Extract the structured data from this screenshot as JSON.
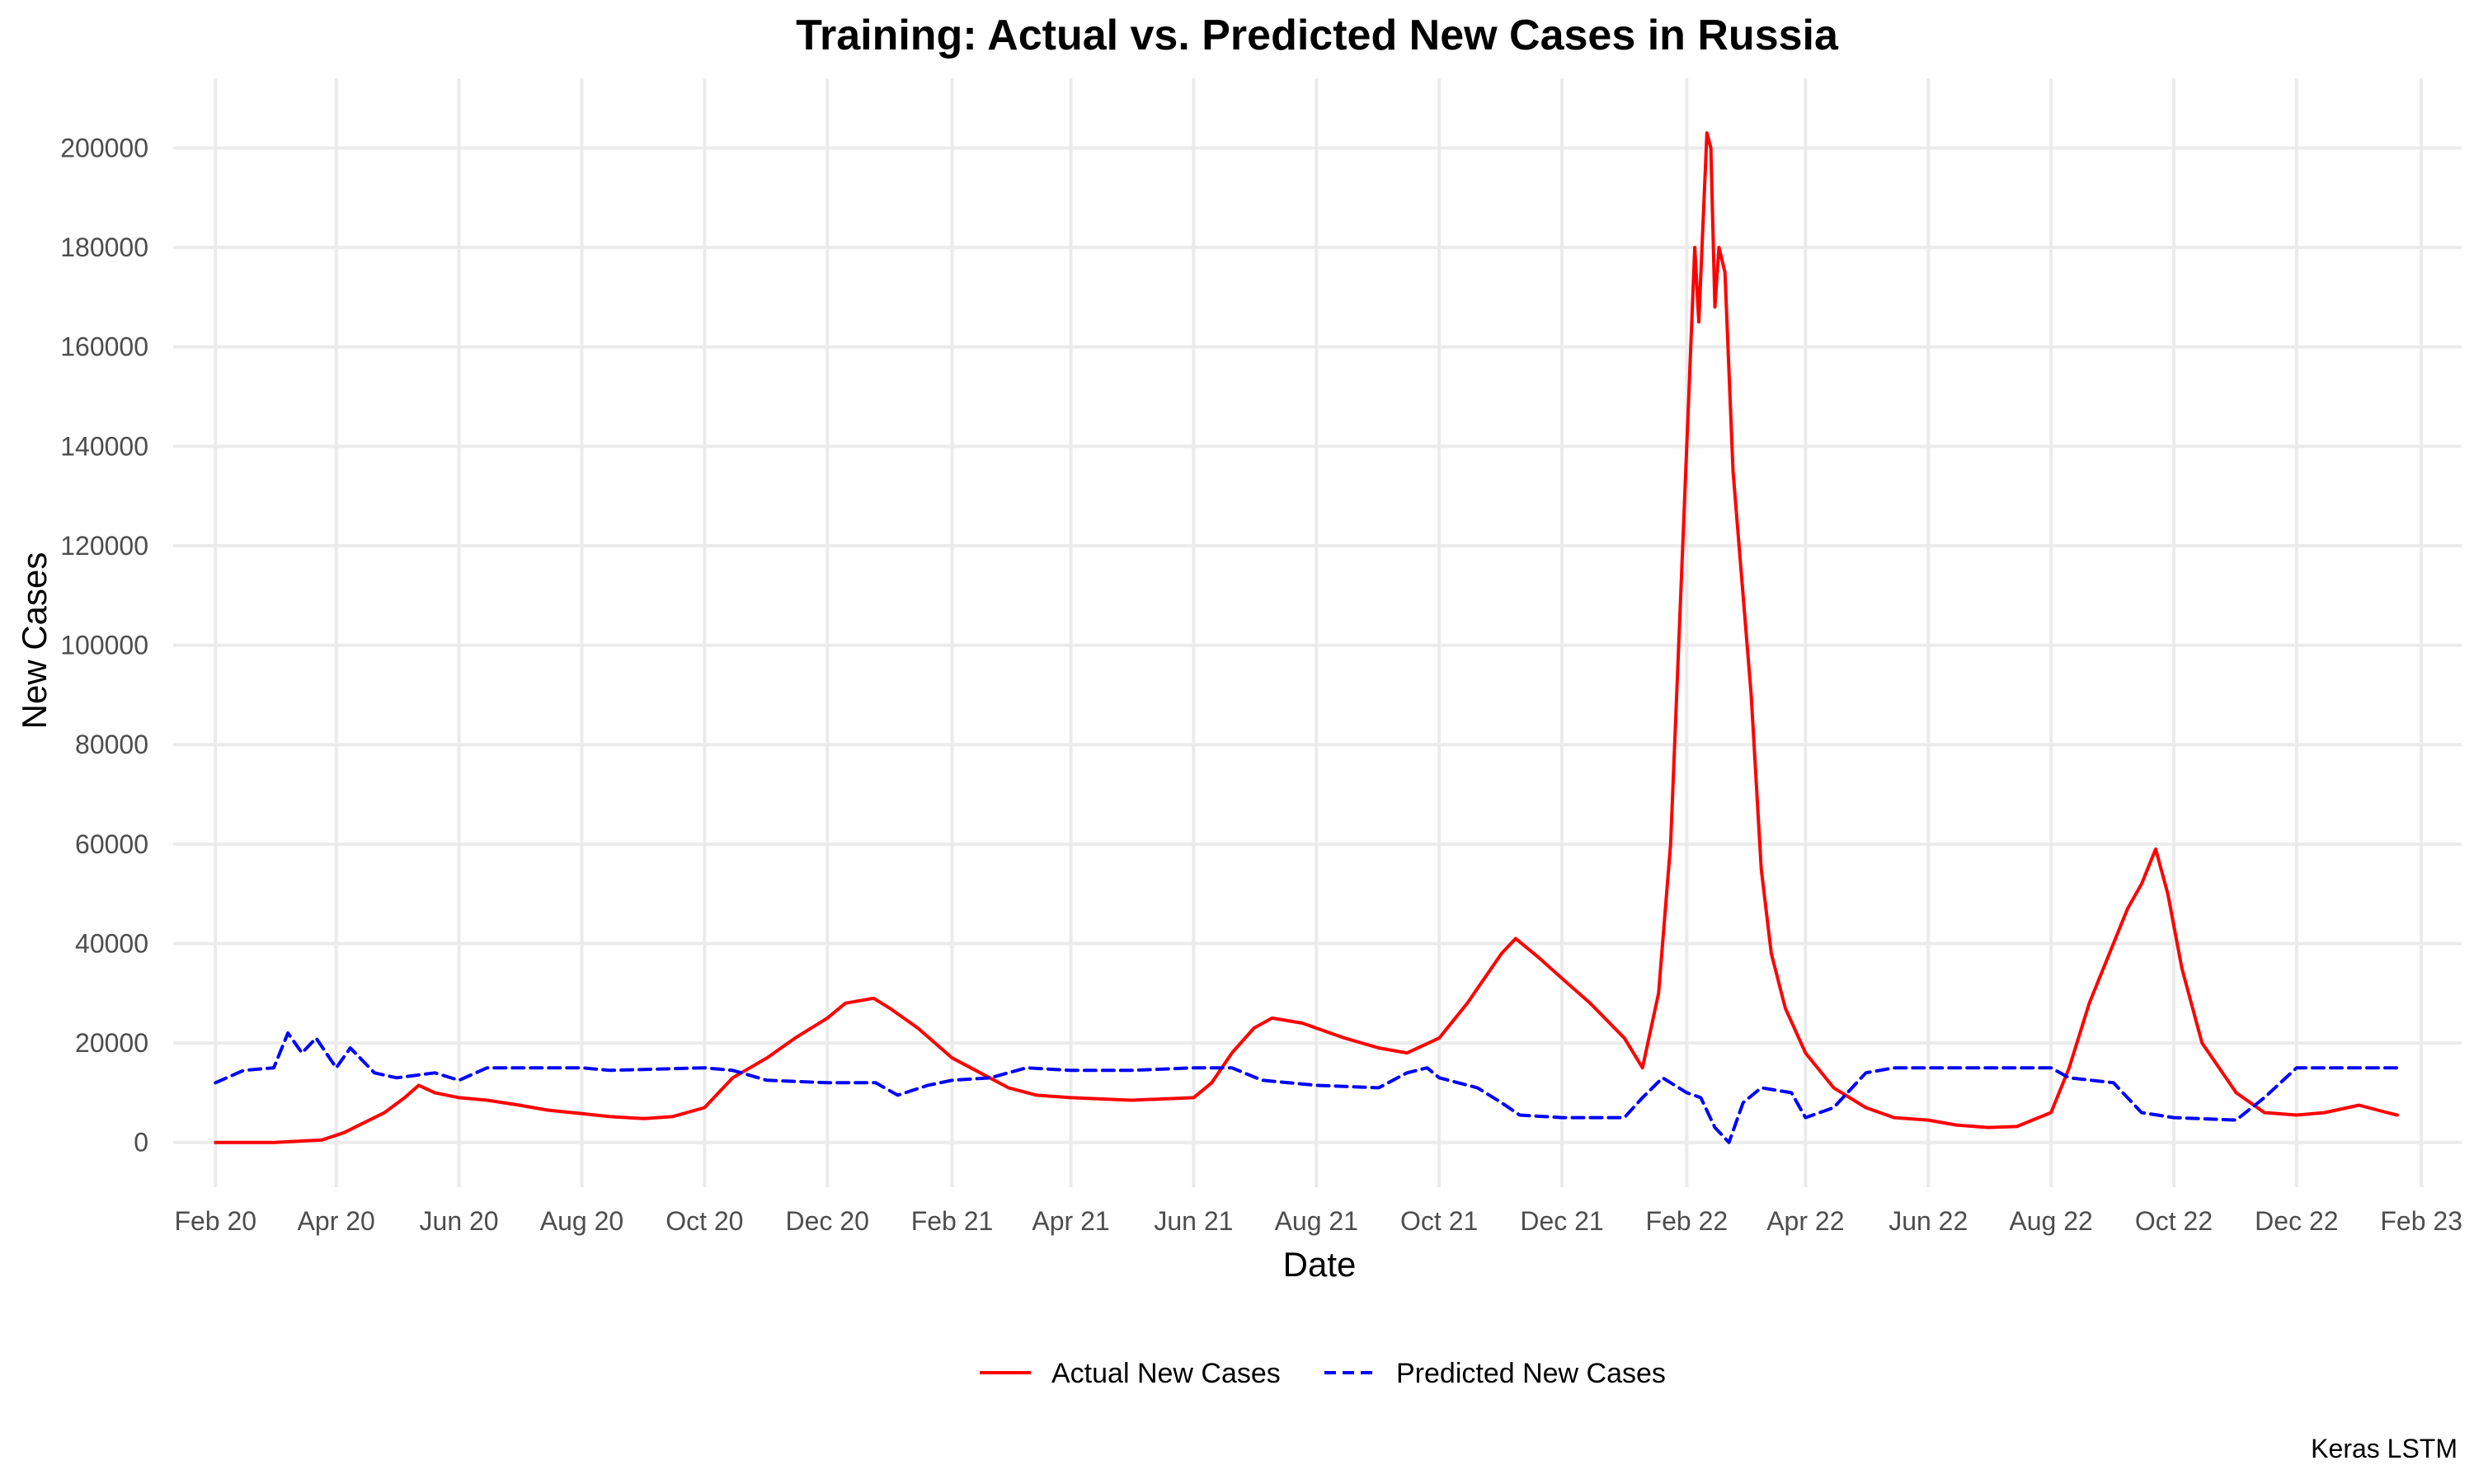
{
  "chart_data": {
    "type": "line",
    "title": "Training: Actual vs. Predicted New Cases in Russia",
    "xlabel": "Date",
    "ylabel": "New Cases",
    "caption": "Keras LSTM",
    "x_ticks": [
      "Feb 20",
      "Apr 20",
      "Jun 20",
      "Aug 20",
      "Oct 20",
      "Dec 20",
      "Feb 21",
      "Apr 21",
      "Jun 21",
      "Aug 21",
      "Oct 21",
      "Dec 21",
      "Feb 22",
      "Apr 22",
      "Jun 22",
      "Aug 22",
      "Oct 22",
      "Dec 22",
      "Feb 23"
    ],
    "x_tick_dates": [
      "2020-02-01",
      "2020-04-01",
      "2020-06-01",
      "2020-08-01",
      "2020-10-01",
      "2020-12-01",
      "2021-02-01",
      "2021-04-01",
      "2021-06-01",
      "2021-08-01",
      "2021-10-01",
      "2021-12-01",
      "2022-02-01",
      "2022-04-01",
      "2022-06-01",
      "2022-08-01",
      "2022-10-01",
      "2022-12-01",
      "2023-02-01"
    ],
    "y_ticks": [
      "0",
      "20000",
      "40000",
      "60000",
      "80000",
      "100000",
      "120000",
      "140000",
      "160000",
      "180000",
      "200000"
    ],
    "xlim": [
      "2020-01-11",
      "2023-02-21"
    ],
    "ylim": [
      -9000,
      214000
    ],
    "grid": true,
    "legend_position": "bottom",
    "series": [
      {
        "name": "Actual New Cases",
        "color": "#ff0000",
        "style": "solid",
        "points": [
          [
            "2020-02-01",
            0
          ],
          [
            "2020-03-01",
            0
          ],
          [
            "2020-03-25",
            500
          ],
          [
            "2020-04-05",
            2000
          ],
          [
            "2020-04-15",
            4000
          ],
          [
            "2020-04-25",
            6000
          ],
          [
            "2020-05-05",
            9000
          ],
          [
            "2020-05-12",
            11500
          ],
          [
            "2020-05-20",
            10000
          ],
          [
            "2020-06-01",
            9000
          ],
          [
            "2020-06-15",
            8500
          ],
          [
            "2020-07-01",
            7500
          ],
          [
            "2020-07-15",
            6500
          ],
          [
            "2020-08-01",
            5800
          ],
          [
            "2020-08-15",
            5200
          ],
          [
            "2020-09-01",
            4800
          ],
          [
            "2020-09-15",
            5200
          ],
          [
            "2020-10-01",
            7000
          ],
          [
            "2020-10-15",
            13000
          ],
          [
            "2020-11-01",
            17000
          ],
          [
            "2020-11-15",
            21000
          ],
          [
            "2020-12-01",
            25000
          ],
          [
            "2020-12-10",
            28000
          ],
          [
            "2020-12-24",
            29000
          ],
          [
            "2021-01-01",
            27000
          ],
          [
            "2021-01-15",
            23000
          ],
          [
            "2021-02-01",
            17000
          ],
          [
            "2021-02-15",
            14000
          ],
          [
            "2021-03-01",
            11000
          ],
          [
            "2021-03-15",
            9500
          ],
          [
            "2021-04-01",
            9000
          ],
          [
            "2021-05-01",
            8500
          ],
          [
            "2021-06-01",
            9000
          ],
          [
            "2021-06-10",
            12000
          ],
          [
            "2021-06-20",
            18000
          ],
          [
            "2021-07-01",
            23000
          ],
          [
            "2021-07-10",
            25000
          ],
          [
            "2021-07-25",
            24000
          ],
          [
            "2021-08-15",
            21000
          ],
          [
            "2021-09-01",
            19000
          ],
          [
            "2021-09-15",
            18000
          ],
          [
            "2021-10-01",
            21000
          ],
          [
            "2021-10-15",
            28000
          ],
          [
            "2021-11-01",
            38000
          ],
          [
            "2021-11-08",
            41000
          ],
          [
            "2021-11-20",
            37000
          ],
          [
            "2021-12-01",
            33000
          ],
          [
            "2021-12-15",
            28000
          ],
          [
            "2022-01-01",
            21000
          ],
          [
            "2022-01-10",
            15000
          ],
          [
            "2022-01-18",
            30000
          ],
          [
            "2022-01-24",
            60000
          ],
          [
            "2022-01-30",
            120000
          ],
          [
            "2022-02-05",
            180000
          ],
          [
            "2022-02-07",
            165000
          ],
          [
            "2022-02-11",
            203000
          ],
          [
            "2022-02-13",
            200000
          ],
          [
            "2022-02-15",
            168000
          ],
          [
            "2022-02-17",
            180000
          ],
          [
            "2022-02-20",
            175000
          ],
          [
            "2022-02-24",
            135000
          ],
          [
            "2022-03-01",
            110000
          ],
          [
            "2022-03-05",
            90000
          ],
          [
            "2022-03-10",
            55000
          ],
          [
            "2022-03-15",
            38000
          ],
          [
            "2022-03-22",
            27000
          ],
          [
            "2022-04-01",
            18000
          ],
          [
            "2022-04-15",
            11000
          ],
          [
            "2022-05-01",
            7000
          ],
          [
            "2022-05-15",
            5000
          ],
          [
            "2022-06-01",
            4500
          ],
          [
            "2022-06-15",
            3500
          ],
          [
            "2022-07-01",
            3000
          ],
          [
            "2022-07-15",
            3200
          ],
          [
            "2022-08-01",
            6000
          ],
          [
            "2022-08-10",
            15000
          ],
          [
            "2022-08-20",
            28000
          ],
          [
            "2022-09-01",
            40000
          ],
          [
            "2022-09-08",
            47000
          ],
          [
            "2022-09-15",
            52000
          ],
          [
            "2022-09-22",
            59000
          ],
          [
            "2022-09-28",
            50000
          ],
          [
            "2022-10-05",
            35000
          ],
          [
            "2022-10-15",
            20000
          ],
          [
            "2022-11-01",
            10000
          ],
          [
            "2022-11-15",
            6000
          ],
          [
            "2022-12-01",
            5500
          ],
          [
            "2022-12-15",
            6000
          ],
          [
            "2023-01-01",
            7500
          ],
          [
            "2023-01-15",
            6000
          ],
          [
            "2023-01-20",
            5500
          ]
        ]
      },
      {
        "name": "Predicted New Cases",
        "color": "#0000ff",
        "style": "dashed",
        "points": [
          [
            "2020-02-01",
            12000
          ],
          [
            "2020-02-15",
            14500
          ],
          [
            "2020-03-01",
            15000
          ],
          [
            "2020-03-08",
            22000
          ],
          [
            "2020-03-15",
            18000
          ],
          [
            "2020-03-22",
            21000
          ],
          [
            "2020-04-01",
            15000
          ],
          [
            "2020-04-08",
            19000
          ],
          [
            "2020-04-20",
            14000
          ],
          [
            "2020-05-01",
            13000
          ],
          [
            "2020-05-20",
            14000
          ],
          [
            "2020-06-01",
            12500
          ],
          [
            "2020-06-15",
            15000
          ],
          [
            "2020-08-01",
            15000
          ],
          [
            "2020-08-15",
            14500
          ],
          [
            "2020-10-01",
            15000
          ],
          [
            "2020-10-15",
            14500
          ],
          [
            "2020-11-01",
            12500
          ],
          [
            "2020-12-01",
            12000
          ],
          [
            "2020-12-25",
            12000
          ],
          [
            "2021-01-05",
            9500
          ],
          [
            "2021-01-20",
            11500
          ],
          [
            "2021-02-01",
            12500
          ],
          [
            "2021-02-20",
            13000
          ],
          [
            "2021-03-10",
            15000
          ],
          [
            "2021-04-01",
            14500
          ],
          [
            "2021-05-01",
            14500
          ],
          [
            "2021-06-01",
            15000
          ],
          [
            "2021-06-20",
            15000
          ],
          [
            "2021-07-05",
            12500
          ],
          [
            "2021-08-01",
            11500
          ],
          [
            "2021-09-01",
            11000
          ],
          [
            "2021-09-15",
            14000
          ],
          [
            "2021-09-25",
            15000
          ],
          [
            "2021-10-01",
            13000
          ],
          [
            "2021-10-20",
            11000
          ],
          [
            "2021-11-01",
            8000
          ],
          [
            "2021-11-10",
            5500
          ],
          [
            "2021-12-01",
            5000
          ],
          [
            "2022-01-01",
            5000
          ],
          [
            "2022-01-10",
            9000
          ],
          [
            "2022-01-20",
            13000
          ],
          [
            "2022-02-01",
            10000
          ],
          [
            "2022-02-08",
            9000
          ],
          [
            "2022-02-15",
            3000
          ],
          [
            "2022-02-22",
            0
          ],
          [
            "2022-03-01",
            8000
          ],
          [
            "2022-03-10",
            11000
          ],
          [
            "2022-03-25",
            10000
          ],
          [
            "2022-04-01",
            5000
          ],
          [
            "2022-04-15",
            7000
          ],
          [
            "2022-05-01",
            14000
          ],
          [
            "2022-05-15",
            15000
          ],
          [
            "2022-08-01",
            15000
          ],
          [
            "2022-08-10",
            13000
          ],
          [
            "2022-09-01",
            12000
          ],
          [
            "2022-09-15",
            6000
          ],
          [
            "2022-10-01",
            5000
          ],
          [
            "2022-11-01",
            4500
          ],
          [
            "2022-11-15",
            9000
          ],
          [
            "2022-12-01",
            15000
          ],
          [
            "2023-01-20",
            15000
          ]
        ]
      }
    ]
  }
}
